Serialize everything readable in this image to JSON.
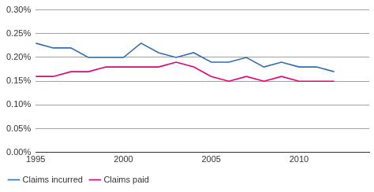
{
  "chart_data": {
    "type": "line",
    "x": [
      1995,
      1996,
      1997,
      1998,
      1999,
      2000,
      2001,
      2002,
      2003,
      2004,
      2005,
      2006,
      2007,
      2008,
      2009,
      2010,
      2011,
      2012
    ],
    "series": [
      {
        "name": "Claims incurred",
        "color": "#2f6db5",
        "values": [
          0.23,
          0.22,
          0.22,
          0.2,
          0.2,
          0.2,
          0.23,
          0.21,
          0.2,
          0.21,
          0.19,
          0.19,
          0.2,
          0.18,
          0.19,
          0.18,
          0.18,
          0.17
        ]
      },
      {
        "name": "Claims paid",
        "color": "#e5007d",
        "values": [
          0.16,
          0.16,
          0.17,
          0.17,
          0.18,
          0.18,
          0.18,
          0.18,
          0.19,
          0.18,
          0.16,
          0.15,
          0.16,
          0.15,
          0.16,
          0.15,
          0.15,
          0.15
        ]
      }
    ],
    "xlim": [
      1995,
      2014
    ],
    "xticks": [
      1995,
      2000,
      2005,
      2010
    ],
    "ylim": [
      0,
      0.3
    ],
    "yticks": [
      {
        "value": 0,
        "label": "0.00%"
      },
      {
        "value": 0.05,
        "label": "0.05%"
      },
      {
        "value": 0.1,
        "label": "0.10%"
      },
      {
        "value": 0.15,
        "label": "0.15%"
      },
      {
        "value": 0.2,
        "label": "0.20%"
      },
      {
        "value": 0.25,
        "label": "0.25%"
      },
      {
        "value": 0.3,
        "label": "0.30%"
      }
    ],
    "grid": true,
    "legend": "bottom-left"
  }
}
